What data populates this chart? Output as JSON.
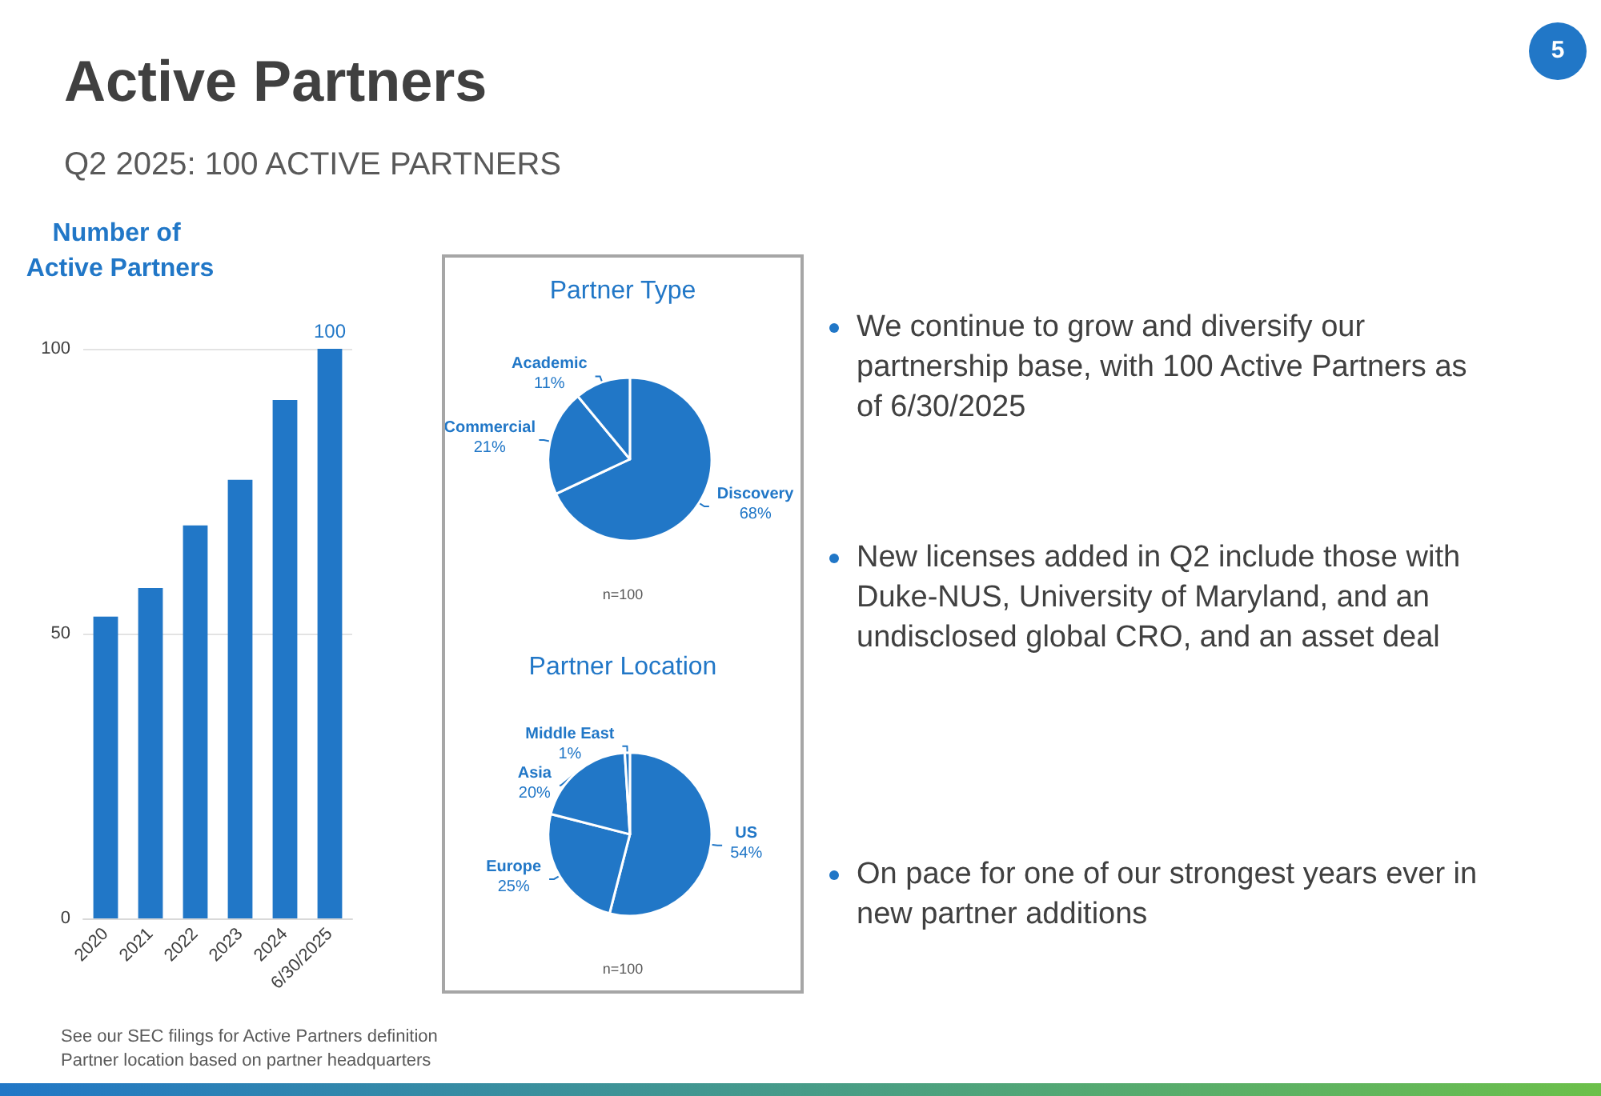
{
  "chart_data": [
    {
      "type": "other",
      "title": "Active Partners",
      "subtitle": "Q2 2025: 100 ACTIVE PARTNERS",
      "annotations": [
        "We continue to grow and diversify our partnership base, with 100 Active Partners as of 6/30/2025",
        "New licenses added in Q2 include those with Duke-NUS, University of Maryland, and an undisclosed global CRO, and an asset deal",
        "On pace for one of our strongest years ever in new partner additions",
        "See our SEC filings for Active Partners definition",
        "Partner location based on partner headquarters",
        "5"
      ]
    },
    {
      "type": "bar",
      "title": "Number of Active Partners",
      "categories": [
        "2020",
        "2021",
        "2022",
        "2023",
        "2024",
        "6/30/2025"
      ],
      "values": [
        53,
        58,
        69,
        77,
        91,
        100
      ],
      "value_labels": [
        null,
        null,
        null,
        null,
        null,
        "100"
      ],
      "color": "#2177c7",
      "ylim": [
        0,
        100
      ],
      "yticks": [
        0,
        50,
        100
      ],
      "grid": "y"
    },
    {
      "type": "pie",
      "title": "Partner Type",
      "categories": [
        "Discovery",
        "Commercial",
        "Academic"
      ],
      "values": [
        68,
        21,
        11
      ],
      "value_labels": [
        "68%",
        "21%",
        "11%"
      ],
      "colors": [
        "#2177c7",
        "#2177c7",
        "#2177c7"
      ],
      "annotations": [
        "n=100"
      ]
    },
    {
      "type": "pie",
      "title": "Partner Location",
      "categories": [
        "US",
        "Europe",
        "Asia",
        "Middle East"
      ],
      "values": [
        54,
        25,
        20,
        1
      ],
      "value_labels": [
        "54%",
        "25%",
        "20%",
        "1%"
      ],
      "colors": [
        "#2177c7",
        "#2177c7",
        "#2177c7",
        "#2177c7"
      ],
      "annotations": [
        "n=100"
      ]
    }
  ]
}
